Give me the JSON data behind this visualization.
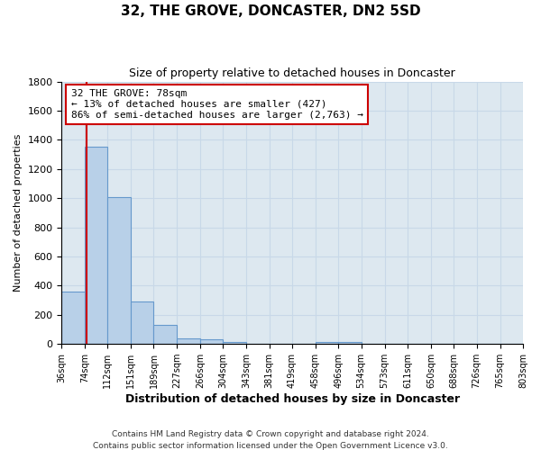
{
  "title": "32, THE GROVE, DONCASTER, DN2 5SD",
  "subtitle": "Size of property relative to detached houses in Doncaster",
  "xlabel": "Distribution of detached houses by size in Doncaster",
  "ylabel": "Number of detached properties",
  "bin_edges": [
    36,
    74,
    112,
    151,
    189,
    227,
    266,
    304,
    343,
    381,
    419,
    458,
    496,
    534,
    573,
    611,
    650,
    688,
    726,
    765,
    803
  ],
  "bin_counts": [
    360,
    1350,
    1010,
    290,
    130,
    40,
    35,
    15,
    0,
    0,
    0,
    15,
    15,
    0,
    0,
    0,
    0,
    0,
    0,
    0
  ],
  "bar_color": "#b8d0e8",
  "bar_edge_color": "#6699cc",
  "property_size": 78,
  "vline_color": "#cc0000",
  "ylim": [
    0,
    1800
  ],
  "yticks": [
    0,
    200,
    400,
    600,
    800,
    1000,
    1200,
    1400,
    1600,
    1800
  ],
  "annotation_title": "32 THE GROVE: 78sqm",
  "annotation_line1": "← 13% of detached houses are smaller (427)",
  "annotation_line2": "86% of semi-detached houses are larger (2,763) →",
  "annotation_box_color": "#ffffff",
  "annotation_box_edge": "#cc0000",
  "grid_color": "#c8d8e8",
  "bg_color": "#dde8f0",
  "fig_color": "#ffffff",
  "footer1": "Contains HM Land Registry data © Crown copyright and database right 2024.",
  "footer2": "Contains public sector information licensed under the Open Government Licence v3.0."
}
